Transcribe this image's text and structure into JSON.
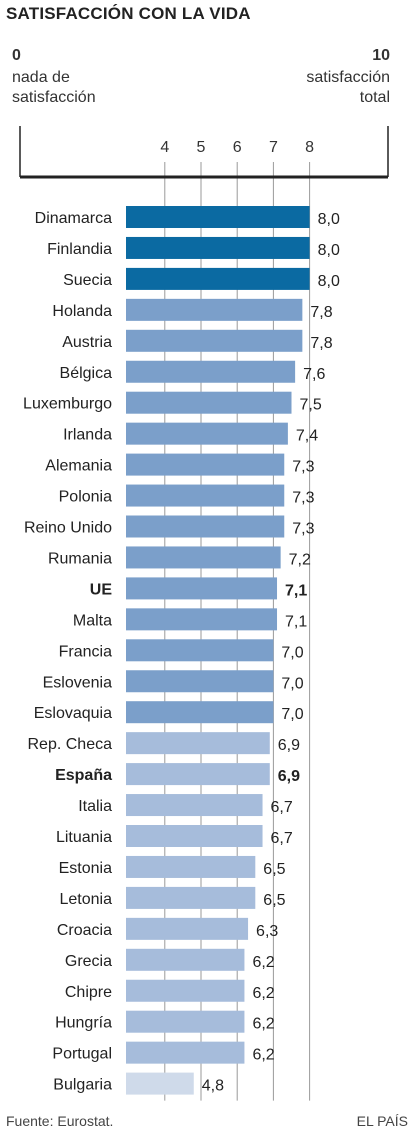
{
  "title": "SATISFACCIÓN CON LA VIDA",
  "scale": {
    "min_value": "0",
    "min_label_line1": "nada de",
    "min_label_line2": "satisfacción",
    "max_value": "10",
    "max_label_line1": "satisfacción",
    "max_label_line2": "total"
  },
  "source": "Fuente: Eurostat.",
  "brand": "EL PAÍS",
  "colors": {
    "top": "#0b6aa2",
    "high": "#7b9fca",
    "mid": "#a6bcdb",
    "low": "#cfdaea",
    "axis": "#222222",
    "grid": "#9a9a9a"
  },
  "chart_data": {
    "type": "bar",
    "orientation": "horizontal",
    "xlim": [
      0,
      10
    ],
    "ticks": [
      "4",
      "5",
      "6",
      "7",
      "8"
    ],
    "grid": true,
    "categories": [
      "Dinamarca",
      "Finlandia",
      "Suecia",
      "Holanda",
      "Austria",
      "Bélgica",
      "Luxemburgo",
      "Irlanda",
      "Alemania",
      "Polonia",
      "Reino Unido",
      "Rumania",
      "UE",
      "Malta",
      "Francia",
      "Eslovenia",
      "Eslovaquia",
      "Rep. Checa",
      "España",
      "Italia",
      "Lituania",
      "Estonia",
      "Letonia",
      "Croacia",
      "Grecia",
      "Chipre",
      "Hungría",
      "Portugal",
      "Bulgaria"
    ],
    "values": [
      8.0,
      8.0,
      8.0,
      7.8,
      7.8,
      7.6,
      7.5,
      7.4,
      7.3,
      7.3,
      7.3,
      7.2,
      7.1,
      7.1,
      7.0,
      7.0,
      7.0,
      6.9,
      6.9,
      6.7,
      6.7,
      6.5,
      6.5,
      6.3,
      6.2,
      6.2,
      6.2,
      6.2,
      4.8
    ],
    "value_labels": [
      "8,0",
      "8,0",
      "8,0",
      "7,8",
      "7,8",
      "7,6",
      "7,5",
      "7,4",
      "7,3",
      "7,3",
      "7,3",
      "7,2",
      "7,1",
      "7,1",
      "7,0",
      "7,0",
      "7,0",
      "6,9",
      "6,9",
      "6,7",
      "6,7",
      "6,5",
      "6,5",
      "6,3",
      "6,2",
      "6,2",
      "6,2",
      "6,2",
      "4,8"
    ],
    "highlighted": [
      "UE",
      "España"
    ]
  }
}
